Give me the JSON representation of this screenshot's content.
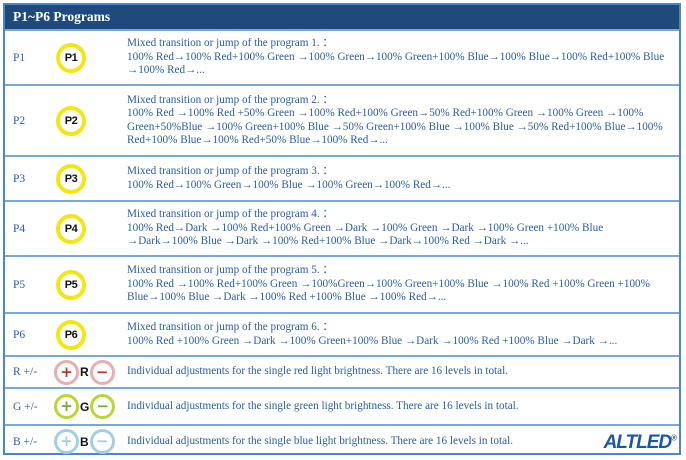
{
  "header": {
    "title": "P1~P6 Programs"
  },
  "colors": {
    "header_bg": "#1f4b7c",
    "body_text": "#2a5da8",
    "row_border": "#7ba6d8",
    "outer_border": "#4e86c4",
    "program_button_ring": "#f2e713",
    "red_ring": "#e9aeae",
    "red_symbol": "#c53030",
    "green_ring": "#bdd533",
    "green_symbol": "#6cae3e",
    "blue_ring": "#a3cfe5",
    "blue_symbol": "#a9cde2",
    "logo_color": "#1a57a5"
  },
  "programs": [
    {
      "label": "P1",
      "button": "P1",
      "title": "Mixed transition or jump of the program 1. ：",
      "sequence": "100% Red→100% Red+100% Green →100% Green→100% Green+100% Blue→100% Blue→100% Red+100% Blue →100% Red→..."
    },
    {
      "label": "P2",
      "button": "P2",
      "title": "Mixed transition or jump of the program 2. ：",
      "sequence": "100% Red →100% Red +50% Green →100% Red+100% Green→50% Red+100% Green →100% Green →100% Green+50%Blue →100% Green+100% Blue →50% Green+100% Blue →100% Blue →50% Red+100% Blue→100% Red+100% Blue→100% Red+50% Blue→100% Red→..."
    },
    {
      "label": "P3",
      "button": "P3",
      "title": "Mixed transition or jump of the program 3. ：",
      "sequence": "100% Red→100% Green→100% Blue →100% Green→100% Red→..."
    },
    {
      "label": "P4",
      "button": "P4",
      "title": "Mixed transition or jump of the program 4. ：",
      "sequence": "100% Red→Dark →100% Red+100% Green →Dark →100% Green →Dark →100% Green +100% Blue →Dark→100% Blue →Dark →100% Red+100% Blue →Dark→100% Red →Dark →..."
    },
    {
      "label": "P5",
      "button": "P5",
      "title": "Mixed transition or jump of the program 5. ：",
      "sequence": "100% Red →100% Red+100% Green →100%Green→100% Green+100% Blue →100% Red +100% Green +100% Blue→100% Blue →Dark →100% Red +100% Blue →100% Red→..."
    },
    {
      "label": "P6",
      "button": "P6",
      "title": "Mixed transition or jump of the program 6. ：",
      "sequence": "100% Red +100% Green →Dark →100% Green+100% Blue →Dark →100% Red +100% Blue →Dark →..."
    }
  ],
  "adjustments": [
    {
      "label": "R +/-",
      "plus": "+",
      "letter": "R",
      "minus": "−",
      "description": "Individual adjustments for the single red light brightness. There are 16 levels in total."
    },
    {
      "label": "G +/-",
      "plus": "+",
      "letter": "G",
      "minus": "−",
      "description": "Individual adjustments for the single green light brightness. There are 16 levels in total."
    },
    {
      "label": "B +/-",
      "plus": "+",
      "letter": "B",
      "minus": "−",
      "description": "Individual adjustments for the single blue light brightness. There are 16 levels in total."
    }
  ],
  "logo": {
    "text": "ALTLED",
    "reg": "®"
  }
}
